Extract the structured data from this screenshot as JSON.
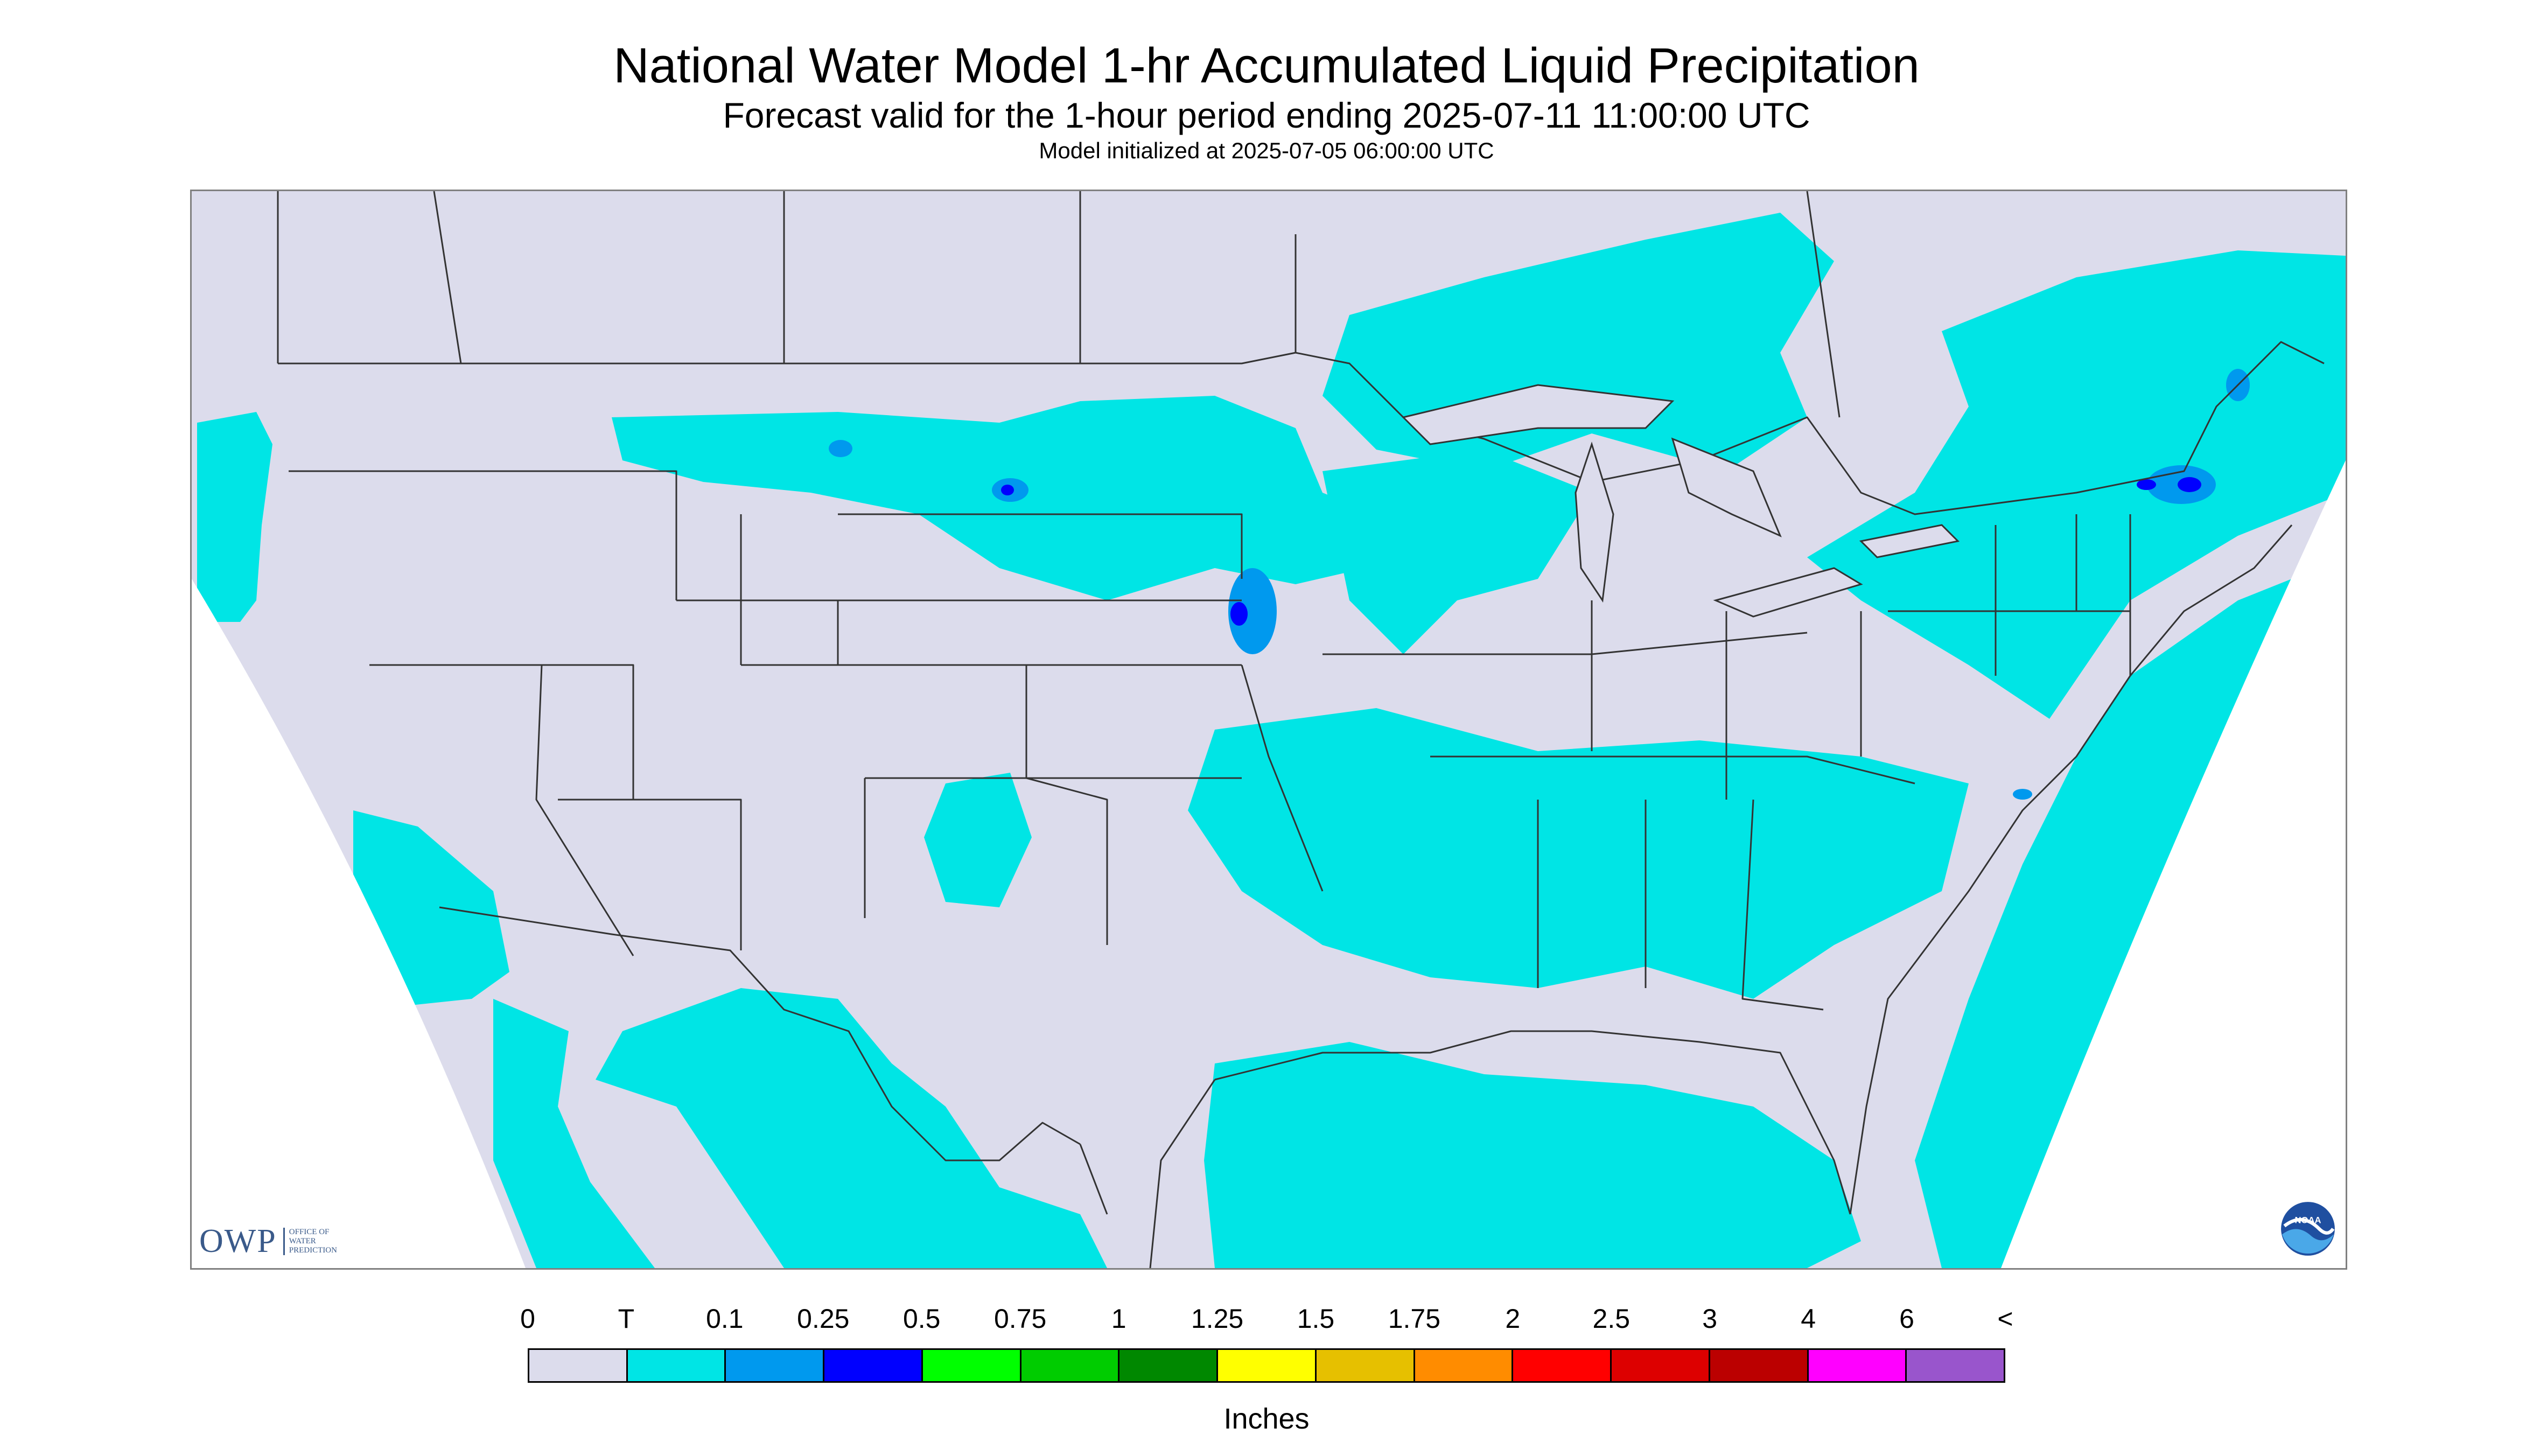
{
  "title": "National Water Model 1-hr Accumulated Liquid Precipitation",
  "subtitle": "Forecast valid for the 1-hour period ending 2025-07-11 11:00:00 UTC",
  "init_text": "Model initialized at 2025-07-05 06:00:00 UTC",
  "colors": {
    "background": "#dcdcec",
    "trace": "#00e5e5",
    "light_blue": "#0099ff",
    "blue": "#0000ff",
    "border_lines": "#333333"
  },
  "legend": {
    "labels": [
      "0",
      "T",
      "0.1",
      "0.25",
      "0.5",
      "0.75",
      "1",
      "1.25",
      "1.5",
      "1.75",
      "2",
      "2.5",
      "3",
      "4",
      "6",
      "<"
    ],
    "colors": [
      "#dcdcec",
      "#00e5e5",
      "#0099ee",
      "#0000ff",
      "#00ff00",
      "#00cc00",
      "#008800",
      "#ffff00",
      "#e6c000",
      "#ff8c00",
      "#ff0000",
      "#dd0000",
      "#bb0000",
      "#ff00ff",
      "#9955cc"
    ],
    "units": "Inches"
  },
  "logos": {
    "owp_letters": "OWP",
    "owp_subtext": "OFFICE OF\nWATER\nPREDICTION",
    "noaa_text": "NOAA"
  }
}
